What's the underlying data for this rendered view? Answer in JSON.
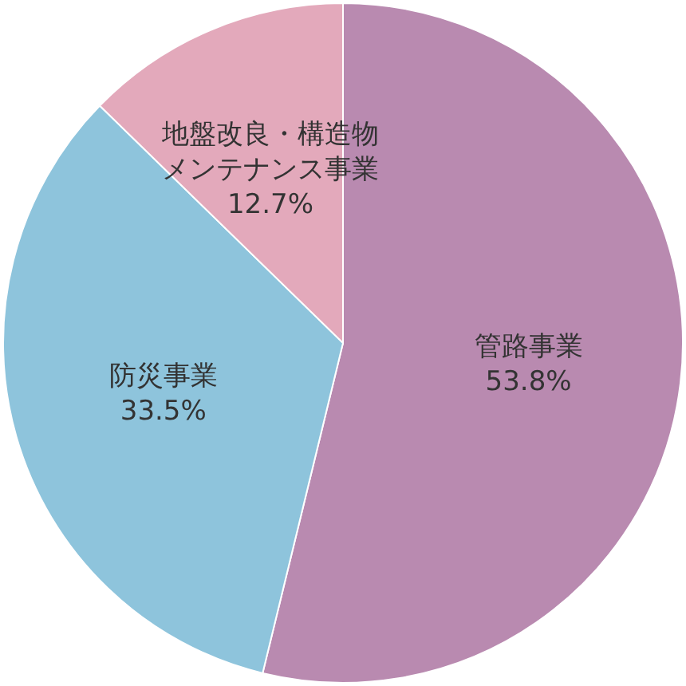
{
  "chart_data": {
    "type": "pie",
    "categories": [
      "管路事業",
      "防災事業",
      "地盤改良・構造物メンテナンス事業"
    ],
    "values": [
      53.8,
      33.5,
      12.7
    ],
    "colors": [
      "#b98ab0",
      "#8ec4dc",
      "#e3a9bb"
    ],
    "value_labels": [
      "53.8%",
      "33.5%",
      "12.7%"
    ],
    "legend": false
  }
}
